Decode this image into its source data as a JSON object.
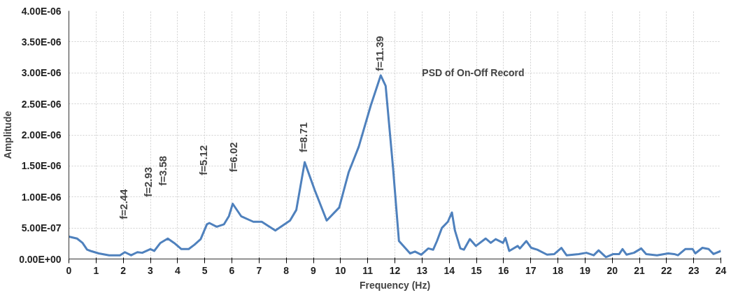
{
  "chart_data": {
    "type": "line",
    "title": "PSD of On-Off Record",
    "xlabel": "Frequency (Hz)",
    "ylabel": "Amplitude",
    "x": [
      0,
      0.3,
      0.5,
      0.67,
      0.8,
      1.1,
      1.48,
      1.88,
      2.06,
      2.29,
      2.52,
      2.7,
      3.0,
      3.14,
      3.37,
      3.64,
      3.87,
      4.14,
      4.41,
      4.62,
      4.85,
      5.08,
      5.17,
      5.44,
      5.71,
      5.89,
      6.03,
      6.34,
      6.79,
      7.1,
      7.6,
      8.14,
      8.37,
      8.68,
      9.05,
      9.49,
      9.95,
      10.3,
      10.67,
      11.11,
      11.48,
      11.66,
      11.93,
      12.15,
      12.56,
      12.74,
      12.97,
      13.23,
      13.41,
      13.55,
      13.73,
      13.95,
      14.1,
      14.21,
      14.41,
      14.54,
      14.76,
      14.98,
      15.34,
      15.53,
      15.71,
      15.98,
      16.07,
      16.21,
      16.52,
      16.6,
      16.84,
      17.02,
      17.24,
      17.6,
      17.87,
      18.13,
      18.32,
      18.77,
      19.05,
      19.32,
      19.5,
      19.77,
      20.04,
      20.26,
      20.38,
      20.53,
      20.8,
      21.07,
      21.25,
      21.65,
      22.06,
      22.28,
      22.42,
      22.69,
      22.96,
      23.06,
      23.32,
      23.55,
      23.73,
      24.0
    ],
    "series": [
      {
        "color": "#4f81bd",
        "values": [
          3.6e-07,
          3.3e-07,
          2.6e-07,
          1.5e-07,
          1.3e-07,
          9e-08,
          6e-08,
          6e-08,
          1.1e-07,
          6e-08,
          1.1e-07,
          1e-07,
          1.6e-07,
          1.3e-07,
          2.6e-07,
          3.3e-07,
          2.6e-07,
          1.6e-07,
          1.6e-07,
          2.3e-07,
          3.2e-07,
          5.6e-07,
          5.8e-07,
          5.2e-07,
          5.6e-07,
          6.9e-07,
          8.9e-07,
          6.9e-07,
          6e-07,
          6e-07,
          4.6e-07,
          6.2e-07,
          7.9e-07,
          1.56e-06,
          1.11e-06,
          6.2e-07,
          8.3e-07,
          1.4e-06,
          1.81e-06,
          2.47e-06,
          2.96e-06,
          2.79e-06,
          1.48e-06,
          2.9e-07,
          9e-08,
          1.2e-07,
          7e-08,
          1.7e-07,
          1.5e-07,
          2.9e-07,
          5e-07,
          6e-07,
          7.5e-07,
          4.6e-07,
          1.7e-07,
          1.5e-07,
          3.2e-07,
          2.1e-07,
          3.3e-07,
          2.6e-07,
          3.2e-07,
          2.6e-07,
          3.4e-07,
          1.3e-07,
          2.1e-07,
          1.7e-07,
          2.9e-07,
          1.8e-07,
          1.5e-07,
          7e-08,
          8e-08,
          1.8e-07,
          6e-08,
          8e-08,
          1e-07,
          6e-08,
          1.4e-07,
          3e-08,
          8e-08,
          8e-08,
          1.6e-07,
          7e-08,
          1e-07,
          1.7e-07,
          8e-08,
          6e-08,
          9e-08,
          8e-08,
          6e-08,
          1.6e-07,
          1.6e-07,
          9e-08,
          1.8e-07,
          1.6e-07,
          8e-08,
          1.3e-07
        ]
      }
    ],
    "xlim": [
      0,
      24
    ],
    "xticks": [
      0,
      1,
      2,
      3,
      4,
      5,
      6,
      7,
      8,
      9,
      10,
      11,
      12,
      13,
      14,
      15,
      16,
      17,
      18,
      19,
      20,
      21,
      22,
      23,
      24
    ],
    "ylim": [
      0,
      4e-06
    ],
    "yticks": [
      {
        "value": 0,
        "label": "0.00E+00"
      },
      {
        "value": 5e-07,
        "label": "5.00E-07"
      },
      {
        "value": 1e-06,
        "label": "1.00E-06"
      },
      {
        "value": 1.5e-06,
        "label": "1.50E-06"
      },
      {
        "value": 2e-06,
        "label": "2.00E-06"
      },
      {
        "value": 2.5e-06,
        "label": "2.50E-06"
      },
      {
        "value": 3e-06,
        "label": "3.00E-06"
      },
      {
        "value": 3.5e-06,
        "label": "3.50E-06"
      },
      {
        "value": 4e-06,
        "label": "4.00E-06"
      }
    ],
    "grid": true,
    "marker": "none",
    "line_style": "solid",
    "annotations": [
      "f=2.44",
      "f=2.93",
      "f=3.58",
      "f=5.12",
      "f=6.02",
      {
        "text": "f=8.71",
        "x": 8.68,
        "y": 1.56e-06
      },
      {
        "text": "f=11.39",
        "x": 11.48,
        "y": 2.96e-06
      }
    ]
  }
}
